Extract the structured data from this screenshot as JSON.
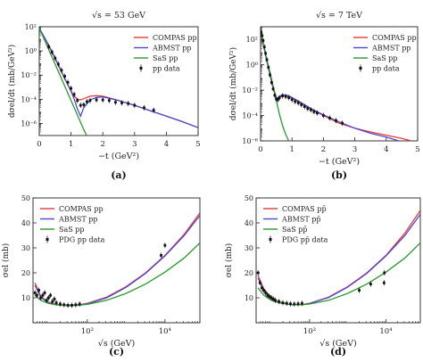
{
  "chart_data": [
    {
      "id": "a",
      "type": "line",
      "panel_label": "(a)",
      "title": "√s = 53 GeV",
      "xlabel": "−t (GeV²)",
      "ylabel": "dσel/dt (mb/GeV²)",
      "xlim": [
        0,
        5
      ],
      "ylim_log10": [
        -7,
        2
      ],
      "y_scale": "log",
      "xticks": [
        "0",
        "1",
        "2",
        "3",
        "4",
        "5"
      ],
      "yticks": [
        "10⁻⁶",
        "10⁻⁴",
        "10⁻²",
        "10⁰",
        "10²"
      ],
      "legend_position": "top-right",
      "legend": [
        "COMPAS pp",
        "ABMST pp",
        "SaS pp",
        "pp data"
      ],
      "series": [
        {
          "name": "COMPAS pp",
          "color": "#e8383c",
          "x": [
            0,
            0.2,
            0.4,
            0.6,
            0.8,
            1.0,
            1.1,
            1.2,
            1.3,
            1.4,
            1.6,
            1.8,
            2.0,
            2.5,
            3.0,
            3.5,
            4.0,
            4.5,
            5.0
          ],
          "y": [
            1.88,
            0.9,
            -0.1,
            -1.2,
            -2.3,
            -3.3,
            -3.75,
            -4.0,
            -4.05,
            -3.95,
            -3.75,
            -3.7,
            -3.75,
            -4.1,
            -4.5,
            -4.95,
            -5.4,
            -5.85,
            -6.35
          ]
        },
        {
          "name": "ABMST pp",
          "color": "#4a4ad6",
          "x": [
            0,
            0.2,
            0.4,
            0.6,
            0.8,
            1.0,
            1.1,
            1.2,
            1.3,
            1.4,
            1.6,
            1.8,
            2.0,
            2.5,
            3.0,
            3.5,
            4.0,
            4.5,
            5.0
          ],
          "y": [
            1.88,
            0.95,
            -0.05,
            -1.15,
            -2.25,
            -3.35,
            -4.0,
            -4.8,
            -5.4,
            -4.7,
            -4.05,
            -3.85,
            -3.8,
            -4.1,
            -4.5,
            -4.95,
            -5.4,
            -5.85,
            -6.35
          ]
        },
        {
          "name": "SaS pp",
          "color": "#2a9a2a",
          "x": [
            0,
            0.2,
            0.4,
            0.6,
            0.8,
            1.0,
            1.2,
            1.4,
            1.6
          ],
          "y": [
            1.88,
            0.7,
            -0.5,
            -1.7,
            -2.9,
            -4.1,
            -5.3,
            -6.5,
            -7.6
          ]
        },
        {
          "name": "pp data",
          "color": "#111111",
          "marker": true,
          "x": [
            0.3,
            0.4,
            0.5,
            0.6,
            0.7,
            0.8,
            0.9,
            1.0,
            1.1,
            1.2,
            1.3,
            1.4,
            1.5,
            1.6,
            1.8,
            2.0,
            2.2,
            2.4,
            2.6,
            2.8,
            3.0,
            3.3,
            3.6
          ],
          "y": [
            0.35,
            -0.1,
            -0.6,
            -1.1,
            -1.6,
            -2.1,
            -2.6,
            -3.1,
            -3.6,
            -4.1,
            -4.5,
            -4.45,
            -4.2,
            -4.1,
            -4.05,
            -4.05,
            -4.1,
            -4.25,
            -4.3,
            -4.35,
            -4.5,
            -4.7,
            -4.9
          ]
        }
      ]
    },
    {
      "id": "b",
      "type": "line",
      "panel_label": "(b)",
      "title": "√s = 7 TeV",
      "xlabel": "−t (GeV²)",
      "ylabel": "dσel/dt (mb/GeV²)",
      "xlim": [
        0,
        5
      ],
      "ylim_log10": [
        -6,
        3
      ],
      "y_scale": "log",
      "xticks": [
        "0",
        "1",
        "2",
        "3",
        "4",
        "5"
      ],
      "yticks": [
        "10⁻⁶",
        "10⁻⁴",
        "10⁻²",
        "10⁰",
        "10²"
      ],
      "legend_position": "top-right",
      "legend": [
        "COMPAS pp",
        "ABMST pp",
        "SaS pp",
        "pp data"
      ],
      "series": [
        {
          "name": "COMPAS pp",
          "color": "#e8383c",
          "x": [
            0,
            0.1,
            0.2,
            0.3,
            0.4,
            0.5,
            0.55,
            0.6,
            0.7,
            0.9,
            1.2,
            1.6,
            2.0,
            2.5,
            3.0,
            3.5,
            4.0,
            4.5,
            4.8
          ],
          "y": [
            2.6,
            1.5,
            0.3,
            -0.8,
            -1.8,
            -2.6,
            -2.8,
            -2.6,
            -2.4,
            -2.5,
            -2.9,
            -3.5,
            -4.0,
            -4.6,
            -5.0,
            -5.3,
            -5.55,
            -5.8,
            -6.0
          ]
        },
        {
          "name": "ABMST pp",
          "color": "#4a4ad6",
          "x": [
            0,
            0.1,
            0.2,
            0.3,
            0.4,
            0.5,
            0.55,
            0.6,
            0.7,
            0.9,
            1.2,
            1.6,
            2.0,
            2.5,
            3.0,
            3.5,
            4.0,
            4.4
          ],
          "y": [
            2.6,
            1.5,
            0.3,
            -0.8,
            -1.8,
            -2.6,
            -2.7,
            -2.5,
            -2.35,
            -2.45,
            -2.85,
            -3.45,
            -3.95,
            -4.5,
            -5.0,
            -5.4,
            -5.7,
            -6.0
          ]
        },
        {
          "name": "SaS pp",
          "color": "#2a9a2a",
          "x": [
            0,
            0.1,
            0.2,
            0.3,
            0.4,
            0.5,
            0.6,
            0.7,
            0.8,
            0.9
          ],
          "y": [
            2.6,
            1.5,
            0.4,
            -0.6,
            -1.7,
            -2.8,
            -3.9,
            -4.8,
            -5.5,
            -6.0
          ]
        },
        {
          "name": "pp data",
          "color": "#111111",
          "marker": true,
          "x": [
            0.02,
            0.05,
            0.08,
            0.12,
            0.16,
            0.2,
            0.25,
            0.3,
            0.35,
            0.4,
            0.45,
            0.5,
            0.55,
            0.6,
            0.7,
            0.8,
            0.9,
            1.0,
            1.1,
            1.2,
            1.3,
            1.4,
            1.5,
            1.6,
            1.7,
            1.8,
            2.0,
            2.2,
            2.4,
            2.6
          ],
          "y": [
            2.55,
            2.3,
            1.9,
            1.4,
            0.9,
            0.4,
            -0.2,
            -0.8,
            -1.4,
            -1.9,
            -2.4,
            -2.7,
            -2.75,
            -2.6,
            -2.45,
            -2.5,
            -2.6,
            -2.75,
            -2.9,
            -3.0,
            -3.15,
            -3.3,
            -3.45,
            -3.55,
            -3.7,
            -3.8,
            -4.0,
            -4.2,
            -4.4,
            -4.6
          ]
        }
      ]
    },
    {
      "id": "c",
      "type": "line",
      "panel_label": "(c)",
      "xlabel": "√s (GeV)",
      "ylabel": "σel (mb)",
      "x_scale": "log",
      "xlim_log10": [
        0.6,
        4.9
      ],
      "ylim": [
        0,
        50
      ],
      "xticks": [
        "10²",
        "10⁴"
      ],
      "yticks": [
        "10",
        "20",
        "30",
        "40",
        "50"
      ],
      "legend_position": "top-left",
      "legend": [
        "COMPAS pp",
        "ABMST pp",
        "SaS pp",
        "PDG pp data"
      ],
      "series": [
        {
          "name": "COMPAS pp",
          "color": "#e8383c",
          "x": [
            0.65,
            0.8,
            1.0,
            1.2,
            1.5,
            1.8,
            2.0,
            2.5,
            3.0,
            3.5,
            4.0,
            4.5,
            4.9
          ],
          "y": [
            16,
            10.5,
            8.2,
            7.3,
            7.0,
            7.2,
            7.8,
            10.3,
            14.5,
            20.0,
            27.0,
            35.5,
            44.0
          ]
        },
        {
          "name": "ABMST pp",
          "color": "#4a4ad6",
          "x": [
            0.65,
            0.8,
            1.0,
            1.2,
            1.5,
            1.8,
            2.0,
            2.5,
            3.0,
            3.5,
            4.0,
            4.5,
            4.9
          ],
          "y": [
            15,
            10.2,
            8.0,
            7.2,
            6.9,
            7.0,
            7.6,
            10.0,
            14.2,
            19.8,
            26.8,
            35.0,
            43.0
          ]
        },
        {
          "name": "SaS pp",
          "color": "#2a9a2a",
          "x": [
            0.65,
            0.8,
            1.0,
            1.2,
            1.5,
            1.8,
            2.0,
            2.5,
            3.0,
            3.5,
            4.0,
            4.5,
            4.9
          ],
          "y": [
            11,
            9.0,
            7.8,
            7.2,
            7.0,
            7.1,
            7.4,
            9.0,
            11.8,
            15.5,
            20.3,
            26.0,
            32.0
          ]
        },
        {
          "name": "PDG pp data",
          "color": "#111111",
          "marker": true,
          "x": [
            0.65,
            0.7,
            0.75,
            0.8,
            0.85,
            0.9,
            0.95,
            1.0,
            1.05,
            1.1,
            1.15,
            1.2,
            1.3,
            1.4,
            1.5,
            1.6,
            1.7,
            1.8,
            3.9,
            4.0
          ],
          "y": [
            12,
            11,
            13,
            10,
            11,
            12,
            9,
            10,
            11,
            8.5,
            9.5,
            8,
            7.5,
            7.2,
            7.0,
            7.0,
            7.2,
            7.5,
            27,
            31
          ]
        }
      ]
    },
    {
      "id": "d",
      "type": "line",
      "panel_label": "(d)",
      "xlabel": "√s (GeV)",
      "ylabel": "σel (mb)",
      "x_scale": "log",
      "xlim_log10": [
        0.6,
        4.9
      ],
      "ylim": [
        0,
        50
      ],
      "xticks": [
        "10²",
        "10⁴"
      ],
      "yticks": [
        "10",
        "20",
        "30",
        "40",
        "50"
      ],
      "legend_position": "top-left",
      "legend": [
        "COMPAS pp̄",
        "ABMST pp̄",
        "SaS pp̄",
        "PDG pp̄ data"
      ],
      "series": [
        {
          "name": "COMPAS pp̄",
          "color": "#e8383c",
          "x": [
            0.65,
            0.8,
            1.0,
            1.2,
            1.5,
            1.8,
            2.0,
            2.5,
            3.0,
            3.5,
            4.0,
            4.5,
            4.9
          ],
          "y": [
            19,
            13.5,
            10.0,
            8.3,
            7.3,
            7.3,
            7.8,
            10.3,
            14.5,
            20.0,
            27.0,
            36.0,
            45.0
          ]
        },
        {
          "name": "ABMST pp̄",
          "color": "#4a4ad6",
          "x": [
            0.65,
            0.8,
            1.0,
            1.2,
            1.5,
            1.8,
            2.0,
            2.5,
            3.0,
            3.5,
            4.0,
            4.5,
            4.9
          ],
          "y": [
            18,
            13.0,
            9.8,
            8.2,
            7.2,
            7.2,
            7.7,
            10.1,
            14.3,
            19.8,
            26.8,
            35.0,
            43.5
          ]
        },
        {
          "name": "SaS pp̄",
          "color": "#2a9a2a",
          "x": [
            0.65,
            0.8,
            1.0,
            1.2,
            1.5,
            1.8,
            2.0,
            2.5,
            3.0,
            3.5,
            4.0,
            4.5,
            4.9
          ],
          "y": [
            14,
            11.0,
            9.0,
            8.0,
            7.3,
            7.2,
            7.5,
            9.0,
            11.8,
            15.5,
            20.3,
            26.0,
            32.0
          ]
        },
        {
          "name": "PDG pp̄ data",
          "color": "#111111",
          "marker": true,
          "x": [
            0.65,
            0.7,
            0.75,
            0.8,
            0.85,
            0.9,
            0.95,
            1.0,
            1.05,
            1.1,
            1.2,
            1.3,
            1.4,
            1.5,
            1.6,
            1.7,
            1.8,
            3.3,
            3.6,
            3.95,
            3.96
          ],
          "y": [
            20,
            16,
            14,
            13,
            12,
            11,
            10.5,
            10,
            9.5,
            9,
            8.5,
            8,
            7.8,
            7.6,
            7.5,
            7.6,
            7.8,
            13,
            15.5,
            16,
            20
          ]
        }
      ]
    }
  ]
}
